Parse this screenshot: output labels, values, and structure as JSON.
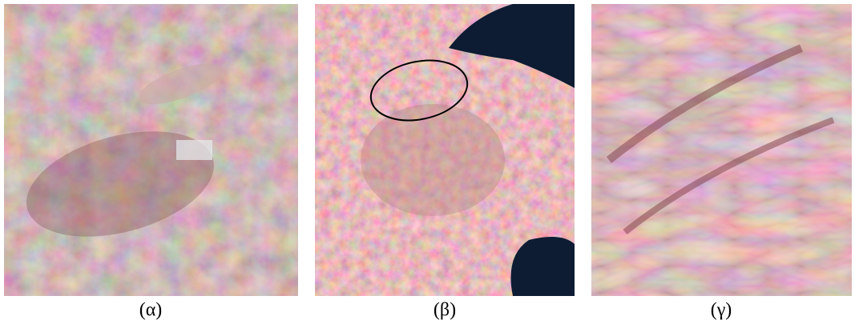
{
  "figure": {
    "panels": [
      {
        "label": "(α)"
      },
      {
        "label": "(β)"
      },
      {
        "label": "(γ)"
      }
    ]
  }
}
